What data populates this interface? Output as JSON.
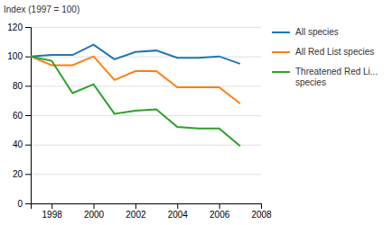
{
  "chart_data": {
    "type": "line",
    "ylabel": "Index (1997 = 100)",
    "x": [
      1997,
      1998,
      1999,
      2000,
      2001,
      2002,
      2003,
      2004,
      2005,
      2006,
      2007
    ],
    "series": [
      {
        "name": "All species",
        "values": [
          100,
          101,
          101,
          108,
          98,
          103,
          104,
          99,
          99,
          100,
          95
        ]
      },
      {
        "name": "All Red List species",
        "values": [
          100,
          94,
          94,
          100,
          84,
          90,
          90,
          79,
          79,
          79,
          68
        ]
      },
      {
        "name": "Threatened Red Li...\nspecies",
        "values": [
          100,
          97,
          75,
          81,
          61,
          63,
          64,
          52,
          51,
          51,
          39
        ]
      }
    ],
    "xlim": [
      1997,
      2008
    ],
    "xticks": [
      1998,
      2000,
      2002,
      2004,
      2006,
      2008
    ],
    "ylim": [
      0,
      120
    ],
    "yticks": [
      0,
      20,
      40,
      60,
      80,
      100,
      120
    ],
    "grid": true,
    "legend": "right"
  }
}
